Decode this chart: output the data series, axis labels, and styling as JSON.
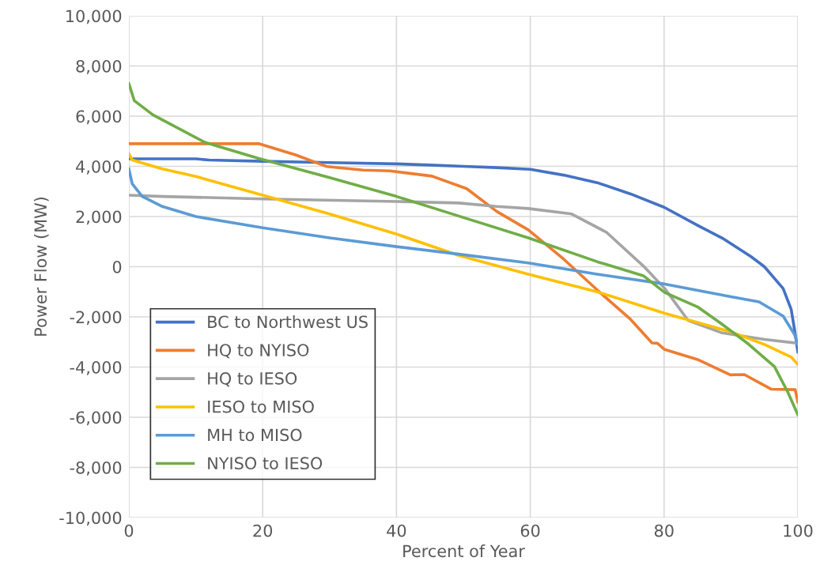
{
  "chart_data": {
    "type": "line",
    "xlabel": "Percent of Year",
    "ylabel": "Power Flow (MW)",
    "xlim": [
      0,
      100
    ],
    "xticks": [
      0,
      20,
      40,
      60,
      80,
      100
    ],
    "ylim": [
      -10000,
      10000
    ],
    "yticks": [
      {
        "value": -10000,
        "label": "-10,000"
      },
      {
        "value": -8000,
        "label": "-8,000"
      },
      {
        "value": -6000,
        "label": "-6,000"
      },
      {
        "value": -4000,
        "label": "-4,000"
      },
      {
        "value": -2000,
        "label": "-2,000"
      },
      0,
      {
        "value": 2000,
        "label": "2,000"
      },
      {
        "value": 4000,
        "label": "4,000"
      },
      {
        "value": 6000,
        "label": "6,000"
      },
      {
        "value": 8000,
        "label": "8,000"
      },
      {
        "value": 10000,
        "label": "10,000"
      }
    ],
    "grid": true,
    "legend": "bottom left",
    "marker": "none",
    "line_style": "solid",
    "series": [
      {
        "name": "BC to Northwest US",
        "color": "#4472c4",
        "x": [
          0,
          10,
          12,
          20,
          30,
          40,
          45,
          50,
          55,
          60,
          65,
          70,
          75,
          80,
          85,
          88.7,
          93,
          95,
          97.8,
          99,
          99.5,
          100
        ],
        "values": [
          4300,
          4300,
          4250,
          4200,
          4150,
          4100,
          4050,
          4000,
          3950,
          3880,
          3650,
          3350,
          2900,
          2370,
          1650,
          1140,
          400,
          0,
          -870,
          -1700,
          -2500,
          -3400
        ]
      },
      {
        "name": "HQ to NYISO",
        "color": "#ed7d31",
        "x": [
          0,
          19.5,
          25,
          29.6,
          35,
          39,
          45.3,
          50.5,
          55,
          59.7,
          65,
          70.6,
          75,
          78.2,
          79,
          80.1,
          85,
          89.9,
          92,
          96,
          99.6,
          100
        ],
        "values": [
          4900,
          4900,
          4450,
          3990,
          3850,
          3820,
          3610,
          3110,
          2200,
          1470,
          300,
          -1070,
          -2100,
          -3040,
          -3050,
          -3300,
          -3700,
          -4310,
          -4300,
          -4880,
          -4900,
          -5400
        ]
      },
      {
        "name": "HQ to IESO",
        "color": "#a5a5a5",
        "x": [
          0,
          5,
          20,
          40,
          49.3,
          55,
          59.7,
          66.2,
          71.4,
          76.9,
          80.1,
          83.6,
          88.7,
          95,
          100
        ],
        "values": [
          2850,
          2800,
          2700,
          2600,
          2540,
          2400,
          2320,
          2100,
          1370,
          30,
          -870,
          -2140,
          -2640,
          -2900,
          -3050
        ]
      },
      {
        "name": "IESO to MISO",
        "color": "#ffc000",
        "x": [
          0,
          0.5,
          5,
          10,
          20,
          30,
          40,
          49.3,
          59.7,
          70,
          80.1,
          90,
          95,
          99,
          100
        ],
        "values": [
          4500,
          4250,
          3900,
          3600,
          2850,
          2100,
          1300,
          450,
          -300,
          -1000,
          -1860,
          -2600,
          -3100,
          -3600,
          -3900
        ]
      },
      {
        "name": "MH to MISO",
        "color": "#5b9bd5",
        "x": [
          0,
          0.5,
          2,
          5,
          10,
          20,
          30,
          40,
          49.3,
          59.7,
          70,
          80.1,
          90,
          94.2,
          97.8,
          99.5,
          100
        ],
        "values": [
          3900,
          3300,
          2800,
          2400,
          2000,
          1550,
          1150,
          800,
          500,
          150,
          -300,
          -690,
          -1200,
          -1400,
          -1970,
          -2700,
          -3100
        ]
      },
      {
        "name": "NYISO to IESO",
        "color": "#70ad47",
        "x": [
          0,
          0.8,
          3.6,
          11.4,
          19.3,
          30,
          40,
          49.3,
          59.7,
          70,
          76.9,
          80.1,
          85,
          88.7,
          92.6,
          96.5,
          98.5,
          100
        ],
        "values": [
          7300,
          6620,
          6050,
          4950,
          4320,
          3550,
          2800,
          2020,
          1150,
          200,
          -360,
          -1030,
          -1600,
          -2300,
          -3080,
          -3980,
          -5000,
          -5900
        ]
      }
    ]
  }
}
